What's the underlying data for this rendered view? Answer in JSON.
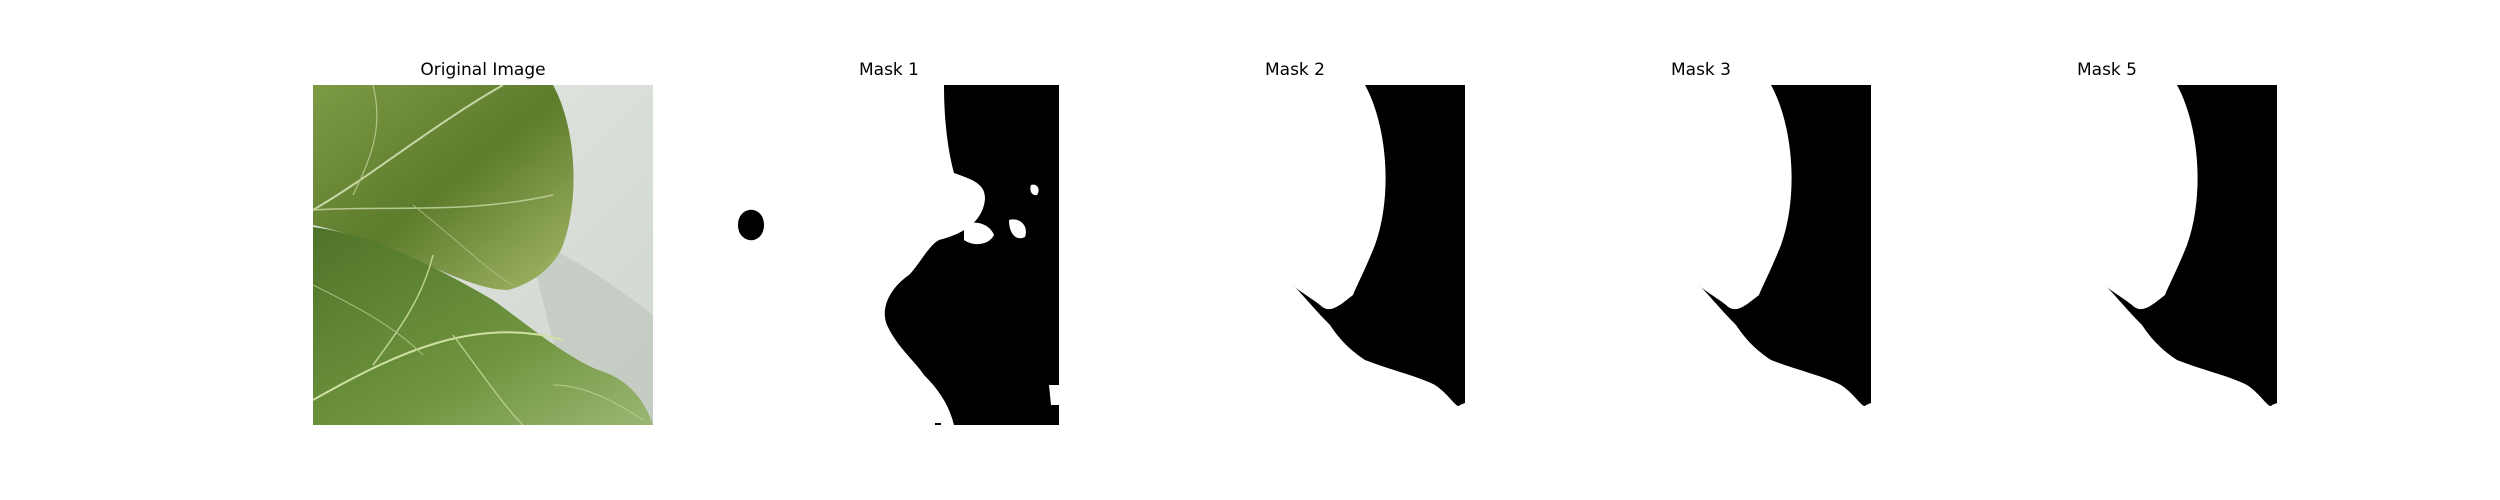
{
  "figure": {
    "panels": [
      {
        "title": "Original Image",
        "kind": "photo",
        "icon": "leaf-photo"
      },
      {
        "title": "Mask 1",
        "kind": "mask",
        "icon": "segmentation-mask"
      },
      {
        "title": "Mask 2",
        "kind": "mask",
        "icon": "segmentation-mask"
      },
      {
        "title": "Mask 3",
        "kind": "mask",
        "icon": "segmentation-mask"
      },
      {
        "title": "Mask 5",
        "kind": "mask",
        "icon": "segmentation-mask"
      }
    ],
    "colors": {
      "background": "#ffffff",
      "mask_foreground": "#ffffff",
      "mask_background": "#000000",
      "leaf_dark": "#3f5f22",
      "leaf_light": "#8cab55",
      "backdrop": "#d8ded6"
    }
  }
}
